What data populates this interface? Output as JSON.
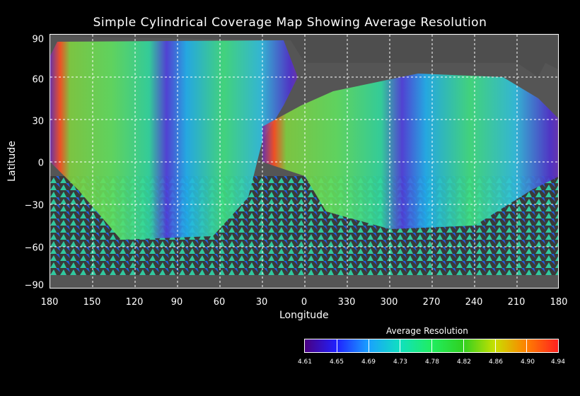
{
  "map": {
    "title": "Simple Cylindrical Coverage Map Showing Average Resolution",
    "xlabel": "Longitude",
    "ylabel": "Latitude",
    "x_ticks": [
      "180",
      "150",
      "120",
      "90",
      "60",
      "30",
      "0",
      "330",
      "300",
      "270",
      "240",
      "210",
      "180"
    ],
    "y_ticks": [
      "90",
      "60",
      "30",
      "0",
      "−30",
      "−60",
      "−90"
    ],
    "grid": "dashed white every 30 degrees",
    "projection": "simple cylindrical"
  },
  "colorbar": {
    "title": "Average Resolution",
    "ticks": [
      "4.61",
      "4.65",
      "4.69",
      "4.73",
      "4.78",
      "4.82",
      "4.86",
      "4.90",
      "4.94"
    ],
    "colors": [
      "#4a0080",
      "#2020ff",
      "#1aa0ff",
      "#10e0c0",
      "#20ee60",
      "#30d020",
      "#c8e000",
      "#ff8000",
      "#ff2020"
    ]
  }
}
